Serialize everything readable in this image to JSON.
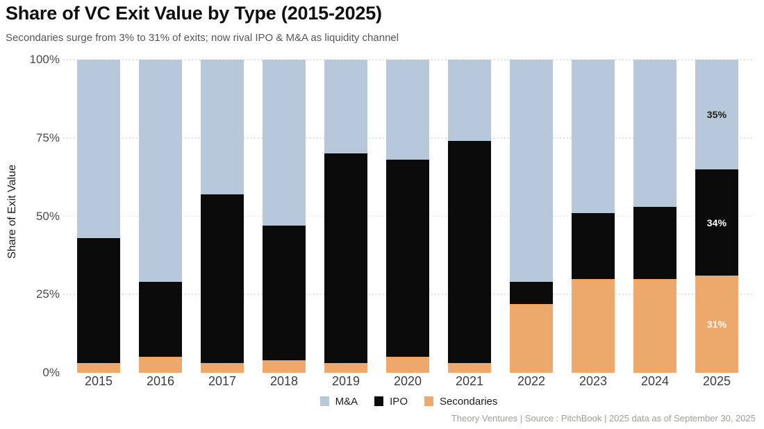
{
  "header": {
    "title": "Share of VC Exit Value by Type (2015-2025)",
    "subtitle": "Secondaries surge from 3% to 31% of exits; now rival IPO & M&A as liquidity channel"
  },
  "footer": {
    "credit": "Theory Ventures | Source : PitchBook | 2025 data as of September 30, 2025"
  },
  "chart_data": {
    "type": "bar",
    "stacked": true,
    "title": "Share of VC Exit Value by Type (2015-2025)",
    "subtitle": "Secondaries surge from 3% to 31% of exits; now rival IPO & M&A as liquidity channel",
    "xlabel": "",
    "ylabel": "Share of Exit Value",
    "ylim": [
      0,
      100
    ],
    "yticks": [
      {
        "value": 0,
        "label": "0%"
      },
      {
        "value": 25,
        "label": "25%"
      },
      {
        "value": 50,
        "label": "50%"
      },
      {
        "value": 75,
        "label": "75%"
      },
      {
        "value": 100,
        "label": "100%"
      }
    ],
    "grid": "horizontal-dotted",
    "legend_position": "bottom",
    "categories": [
      "2015",
      "2016",
      "2017",
      "2018",
      "2019",
      "2020",
      "2021",
      "2022",
      "2023",
      "2024",
      "2025"
    ],
    "series": [
      {
        "name": "M&A",
        "color": "#b6c8da",
        "values": [
          57,
          71,
          43,
          53,
          30,
          32,
          26,
          71,
          49,
          47,
          35
        ]
      },
      {
        "name": "IPO",
        "color": "#0b0b0b",
        "values": [
          40,
          24,
          54,
          43,
          67,
          63,
          71,
          7,
          21,
          23,
          34
        ]
      },
      {
        "name": "Secondaries",
        "color": "#eda96b",
        "values": [
          3,
          5,
          3,
          4,
          3,
          5,
          3,
          22,
          30,
          30,
          31
        ]
      }
    ],
    "bar_labels": {
      "category": "2025",
      "labels": [
        {
          "series": "M&A",
          "text": "35%",
          "text_color": "#1a1a1a"
        },
        {
          "series": "IPO",
          "text": "34%",
          "text_color": "#ffffff"
        },
        {
          "series": "Secondaries",
          "text": "31%",
          "text_color": "#ffffff"
        }
      ]
    }
  }
}
